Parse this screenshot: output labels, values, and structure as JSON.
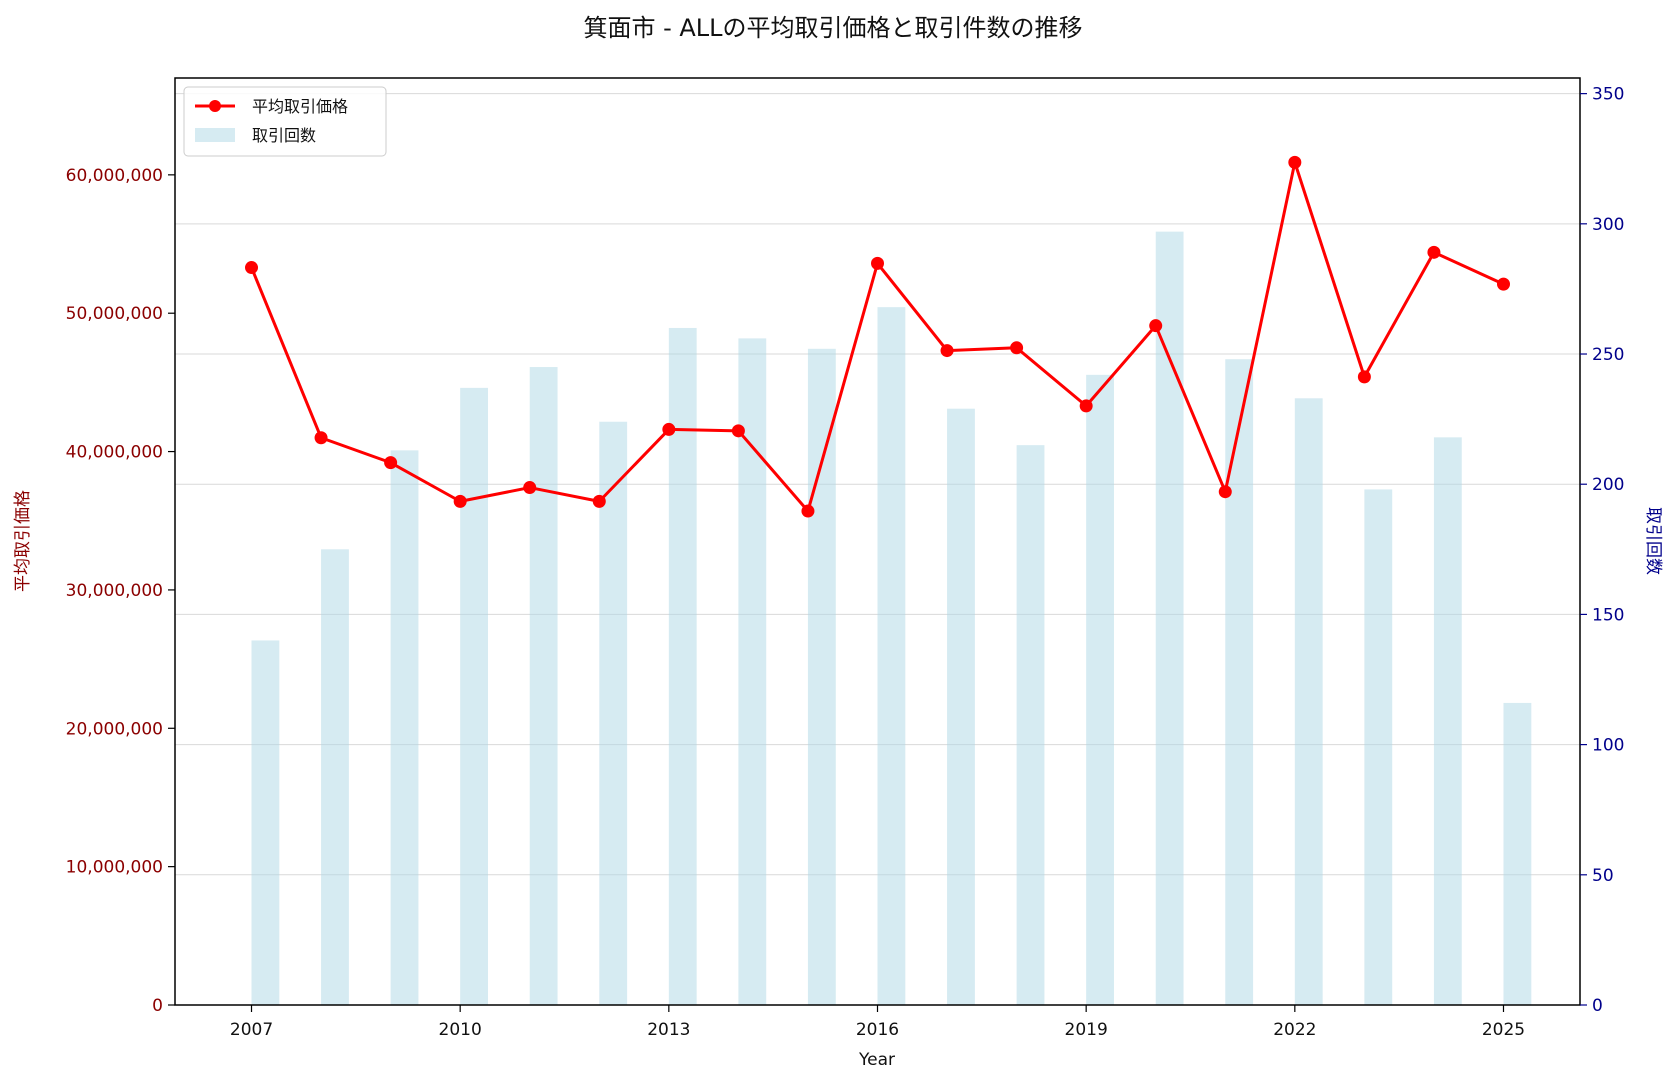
{
  "chart_data": {
    "type": "bar+line",
    "title": "箕面市 - ALLの平均取引価格と取引件数の推移",
    "xlabel": "Year",
    "ylabel_left": "平均取引価格",
    "ylabel_right": "取引回数",
    "x_ticks": [
      "2007",
      "2010",
      "2013",
      "2016",
      "2019",
      "2022",
      "2025"
    ],
    "left_ticks": [
      "0",
      "10,000,000",
      "20,000,000",
      "30,000,000",
      "40,000,000",
      "50,000,000",
      "60,000,000"
    ],
    "right_ticks": [
      "0",
      "50",
      "100",
      "150",
      "200",
      "250",
      "300",
      "350"
    ],
    "ylim_left": [
      0,
      67000000
    ],
    "ylim_right": [
      0,
      356
    ],
    "xlim": [
      2005.9,
      2026.1
    ],
    "grid": true,
    "legend_position": "upper left",
    "years": [
      2007,
      2008,
      2009,
      2010,
      2011,
      2012,
      2013,
      2014,
      2015,
      2016,
      2017,
      2018,
      2019,
      2020,
      2021,
      2022,
      2023,
      2024,
      2025
    ],
    "series": [
      {
        "name": "平均取引価格",
        "kind": "line",
        "axis": "left",
        "color": "#ff0000",
        "values": [
          53300000,
          41000000,
          39200000,
          36400000,
          37400000,
          36400000,
          41600000,
          41500000,
          35700000,
          53600000,
          47300000,
          47500000,
          43300000,
          49100000,
          37100000,
          60900000,
          45400000,
          54400000,
          52100000
        ]
      },
      {
        "name": "取引回数",
        "kind": "bar",
        "axis": "right",
        "color": "#add8e6",
        "values": [
          140,
          175,
          213,
          237,
          245,
          224,
          260,
          256,
          252,
          268,
          229,
          215,
          242,
          297,
          248,
          233,
          198,
          218,
          116
        ]
      }
    ]
  }
}
